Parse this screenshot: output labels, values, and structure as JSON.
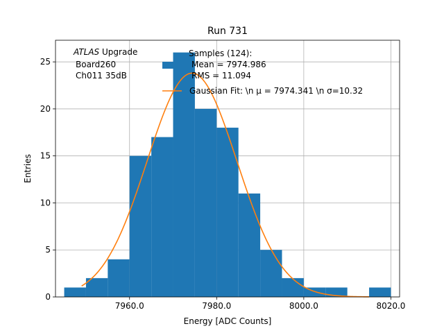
{
  "chart_data": {
    "type": "bar",
    "title": "Run 731",
    "xlabel": "Energy [ADC Counts]",
    "ylabel": "Entries",
    "xlim": [
      7943,
      8022
    ],
    "ylim": [
      0,
      27.3
    ],
    "xticks": [
      7960,
      7980,
      8000,
      8020
    ],
    "xtick_labels": [
      "7960.0",
      "7980.0",
      "8000.0",
      "8020.0"
    ],
    "yticks": [
      0,
      5,
      10,
      15,
      20,
      25
    ],
    "ytick_labels": [
      "0",
      "5",
      "10",
      "15",
      "20",
      "25"
    ],
    "grid": true,
    "legend_position": "top-right",
    "annotation": {
      "atlas": "ATLAS",
      "upgrade": "Upgrade",
      "board": "Board260",
      "channel": "Ch011 35dB"
    },
    "histogram": {
      "name_lines": [
        "Samples (124):",
        "Mean = 7974.986",
        "RMS = 11.094"
      ],
      "color": "#1f77b4",
      "bin_edges": [
        7945,
        7950,
        7955,
        7960,
        7965,
        7970,
        7975,
        7980,
        7985,
        7990,
        7995,
        8000,
        8005,
        8010,
        8015,
        8020
      ],
      "counts": [
        1,
        2,
        4,
        15,
        17,
        26,
        20,
        18,
        11,
        5,
        2,
        1,
        1,
        0,
        1
      ]
    },
    "gaussian_fit": {
      "name": "Gaussian Fit: \\n μ = 7974.341 \\n σ=10.32",
      "color": "#ff7f0e",
      "mu": 7974.341,
      "sigma": 10.32,
      "amplitude": 23.8,
      "x_range": [
        7949,
        8015
      ]
    }
  }
}
